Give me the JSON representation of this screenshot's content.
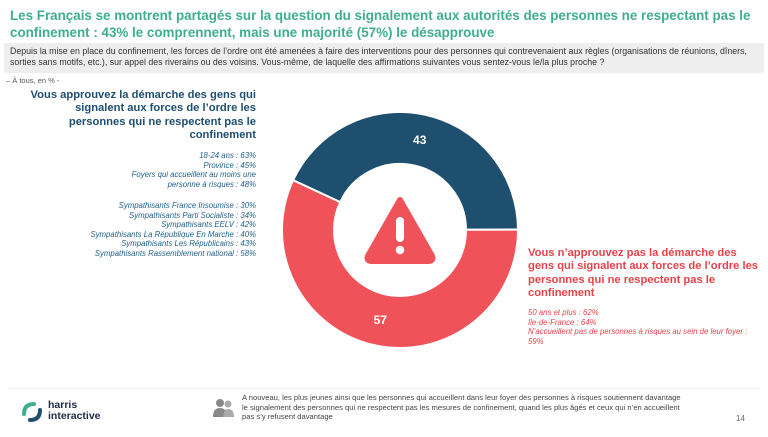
{
  "title": "Les Français se montrent partagés sur la question du signalement aux autorités des personnes ne respectant pas le confinement : 43% le comprennent, mais une majorité (57%) le désapprouve",
  "question": "Depuis la mise en place du confinement, les forces de l’ordre ont été amenées à faire des interventions pour des personnes qui contrevenaient aux règles (organisations de réunions, dîners, sorties sans motifs, etc.), sur appel des riverains ou des voisins. Vous-même, de laquelle des affirmations suivantes vous sentez-vous le/la plus proche ?",
  "base": "– À tous, en % -",
  "left": {
    "title": "Vous approuvez la démarche des gens qui signalent aux forces de l’ordre les personnes qui ne respectent pas le confinement",
    "group1": [
      "18-24 ans : 63%",
      "Province : 45%",
      "Foyers qui accueillent au moins une personne à risques : 48%"
    ],
    "group2": [
      "Sympathisants France Insoumise : 30%",
      "Sympathisants Parti Socialiste : 34%",
      "Sympathisants EELV : 42%",
      "Sympathisants La République En Marche : 40%",
      "Sympathisants Les Républicains : 43%",
      "Sympathisants Rassemblement national : 58%"
    ]
  },
  "right": {
    "title": "Vous n’approuvez pas la démarche des gens qui signalent aux forces de l’ordre les personnes qui ne respectent pas le confinement",
    "items": [
      "50 ans et plus : 62%",
      "Ile-de-France : 64%",
      "N’accueillent pas de personnes à risques au sein de leur foyer : 59%"
    ]
  },
  "chart_data": {
    "type": "pie",
    "donut": true,
    "categories": [
      "Vous approuvez la démarche des gens qui signalent aux forces de l’ordre les personnes qui ne respectent pas le confinement",
      "Vous n’approuvez pas la démarche des gens qui signalent aux forces de l’ordre les personnes qui ne respectent pas le confinement"
    ],
    "values": [
      43,
      57
    ],
    "labels": [
      "43",
      "57"
    ],
    "colors": [
      "#1f4f6e",
      "#f0525a"
    ],
    "center_icon": "warning-triangle-icon"
  },
  "footnote": "A nouveau, les plus jeunes ainsi que les personnes qui accueillent dans leur foyer des personnes à risques soutiennent davantage le signalement des personnes qui ne respectent pas les mesures de confinement, quand les plus âgés et ceux qui n’en accueillent pas s’y refusent davantage",
  "logo": {
    "line1": "harris",
    "line2": "interactive"
  },
  "page_number": "14"
}
